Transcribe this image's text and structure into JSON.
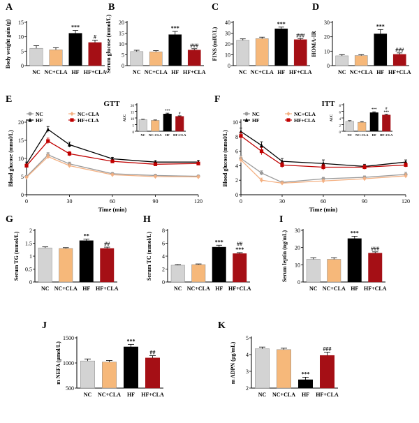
{
  "colors": {
    "NC": "#d3d3d3",
    "NC+CLA": "#f6b87a",
    "HF": "#000000",
    "HF+CLA": "#a50f15",
    "line_NC": "#9a9a9a",
    "line_NCCLA": "#f4b183",
    "line_HF": "#000000",
    "line_HFCLA": "#c00000"
  },
  "chart_data": [
    {
      "panel": "A",
      "type": "bar",
      "categories": [
        "NC",
        "NC+CLA",
        "HF",
        "HF+CLA"
      ],
      "values": [
        6.0,
        5.5,
        11.2,
        8.0
      ],
      "errors": [
        0.9,
        0.7,
        1.0,
        0.8
      ],
      "sig": [
        "",
        "",
        "***",
        "#"
      ],
      "ylabel": "Body weight gain (g)",
      "ylim": [
        0,
        15
      ],
      "yticks": [
        0,
        5,
        10,
        15
      ]
    },
    {
      "panel": "B",
      "type": "bar",
      "categories": [
        "NC",
        "NC+CLA",
        "HF",
        "HF+CLA"
      ],
      "values": [
        6.5,
        6.4,
        14.3,
        7.2
      ],
      "errors": [
        0.6,
        0.5,
        1.5,
        0.6
      ],
      "sig": [
        "",
        "",
        "***",
        "###"
      ],
      "ylabel": "Serum glucose (mmol/L)",
      "ylim": [
        0,
        20
      ],
      "yticks": [
        0,
        5,
        10,
        15,
        20
      ]
    },
    {
      "panel": "C",
      "type": "bar",
      "categories": [
        "NC",
        "NC+CLA",
        "HF",
        "HF+CLA"
      ],
      "values": [
        23.5,
        25.0,
        34.0,
        24.0
      ],
      "errors": [
        1.2,
        1.3,
        1.6,
        1.0
      ],
      "sig": [
        "",
        "",
        "***",
        "###"
      ],
      "ylabel": "FINS (mIU/L)",
      "ylim": [
        0,
        40
      ],
      "yticks": [
        0,
        10,
        20,
        30,
        40
      ]
    },
    {
      "panel": "D",
      "type": "bar",
      "categories": [
        "NC",
        "NC+CLA",
        "HF",
        "HF+CLA"
      ],
      "values": [
        6.8,
        7.0,
        22.0,
        7.8
      ],
      "errors": [
        0.8,
        0.6,
        3.0,
        1.0
      ],
      "sig": [
        "",
        "",
        "***",
        "###"
      ],
      "ylabel": "HOMA-IR",
      "ylim": [
        0,
        30
      ],
      "yticks": [
        0,
        10,
        20,
        30
      ]
    },
    {
      "panel": "E",
      "type": "line",
      "title": "GTT",
      "xlabel": "Time (min)",
      "ylabel": "Blood glucose (mmol/L)",
      "x": [
        0,
        15,
        30,
        60,
        90,
        120
      ],
      "xticks": [
        0,
        30,
        60,
        90,
        120
      ],
      "ylim": [
        0,
        20
      ],
      "yticks": [
        0,
        5,
        10,
        15,
        20
      ],
      "series": [
        {
          "name": "NC",
          "values": [
            5.0,
            11.0,
            8.5,
            5.8,
            5.3,
            5.1
          ],
          "errors": [
            0.3,
            0.6,
            0.5,
            0.3,
            0.3,
            0.3
          ]
        },
        {
          "name": "NC+CLA",
          "values": [
            4.8,
            10.5,
            8.0,
            5.5,
            5.0,
            4.9
          ],
          "errors": [
            0.3,
            0.6,
            0.5,
            0.3,
            0.3,
            0.3
          ]
        },
        {
          "name": "HF",
          "values": [
            8.5,
            18.0,
            13.8,
            9.9,
            9.0,
            9.0
          ],
          "errors": [
            0.5,
            0.8,
            0.7,
            0.4,
            0.4,
            0.5
          ]
        },
        {
          "name": "HF+CLA",
          "values": [
            8.0,
            14.8,
            11.3,
            9.2,
            8.4,
            8.6
          ],
          "errors": [
            0.5,
            0.8,
            0.6,
            0.4,
            0.4,
            0.4
          ]
        }
      ],
      "inset": {
        "ylabel": "AUC",
        "ylim": [
          0,
          2000
        ],
        "yticks": [
          0,
          500,
          1000,
          1500,
          2000
        ],
        "categories": [
          "NC",
          "NC+CLA",
          "HF",
          "HF+CLA"
        ],
        "values": [
          870,
          820,
          1300,
          1120
        ],
        "errors": [
          30,
          30,
          60,
          40
        ],
        "sig": [
          "",
          "",
          "***",
          "#"
        ]
      }
    },
    {
      "panel": "F",
      "type": "line",
      "title": "ITT",
      "xlabel": "Time (min)",
      "ylabel": "Blood glucose (mmol/L)",
      "x": [
        0,
        15,
        30,
        60,
        90,
        120
      ],
      "xticks": [
        0,
        30,
        60,
        90,
        120
      ],
      "ylim": [
        0,
        10
      ],
      "yticks": [
        0,
        2,
        4,
        6,
        8,
        10
      ],
      "series": [
        {
          "name": "NC",
          "values": [
            5.0,
            3.0,
            1.7,
            2.2,
            2.4,
            2.8
          ],
          "errors": [
            0.4,
            0.3,
            0.2,
            0.2,
            0.2,
            0.3
          ]
        },
        {
          "name": "NC+CLA",
          "values": [
            4.8,
            2.0,
            1.6,
            1.9,
            2.2,
            2.6
          ],
          "errors": [
            0.4,
            0.3,
            0.2,
            0.2,
            0.2,
            0.3
          ]
        },
        {
          "name": "HF",
          "values": [
            8.7,
            6.8,
            4.6,
            4.3,
            3.9,
            4.5
          ],
          "errors": [
            0.5,
            0.5,
            0.4,
            0.5,
            0.3,
            0.3
          ]
        },
        {
          "name": "HF+CLA",
          "values": [
            8.1,
            6.0,
            4.1,
            3.8,
            3.8,
            4.1
          ],
          "errors": [
            0.5,
            0.5,
            0.4,
            0.4,
            0.3,
            0.3
          ]
        }
      ],
      "inset": {
        "ylabel": "AUC",
        "ylim": [
          0,
          800
        ],
        "yticks": [
          0,
          200,
          400,
          600,
          800
        ],
        "categories": [
          "NC",
          "NC+CLA",
          "HF",
          "HF+CLA"
        ],
        "values": [
          300,
          270,
          560,
          490
        ],
        "errors": [
          20,
          20,
          25,
          20
        ],
        "sig": [
          "",
          "",
          "***",
          "#\n***"
        ]
      }
    },
    {
      "panel": "G",
      "type": "bar",
      "categories": [
        "NC",
        "NC+CLA",
        "HF",
        "HF+CLA"
      ],
      "values": [
        1.32,
        1.3,
        1.6,
        1.3
      ],
      "errors": [
        0.04,
        0.03,
        0.06,
        0.05
      ],
      "sig": [
        "",
        "",
        "**",
        "##"
      ],
      "ylabel": "Serum TG (mmol/L)",
      "ylim": [
        0,
        2.0
      ],
      "yticks": [
        0.0,
        0.5,
        1.0,
        1.5,
        2.0
      ]
    },
    {
      "panel": "H",
      "type": "bar",
      "categories": [
        "NC",
        "NC+CLA",
        "HF",
        "HF+CLA"
      ],
      "values": [
        2.6,
        2.7,
        5.4,
        4.4
      ],
      "errors": [
        0.1,
        0.1,
        0.3,
        0.15
      ],
      "sig": [
        "",
        "",
        "***",
        "##\n***"
      ],
      "ylabel": "Serum TC (mmol/L)",
      "ylim": [
        0,
        8
      ],
      "yticks": [
        0,
        2,
        4,
        6,
        8
      ]
    },
    {
      "panel": "I",
      "type": "bar",
      "categories": [
        "NC",
        "NC+CLA",
        "HF",
        "HF+CLA"
      ],
      "values": [
        13.2,
        13.2,
        25.2,
        16.8
      ],
      "errors": [
        0.9,
        0.9,
        1.4,
        0.7
      ],
      "sig": [
        "",
        "",
        "***",
        "###"
      ],
      "ylabel": "Serum leptin (ng/mL)",
      "ylim": [
        0,
        30
      ],
      "yticks": [
        0,
        10,
        20,
        30
      ]
    },
    {
      "panel": "J",
      "type": "bar",
      "categories": [
        "NC",
        "NC+CLA",
        "HF",
        "HF+CLA"
      ],
      "values": [
        1040,
        1020,
        1320,
        1100
      ],
      "errors": [
        40,
        30,
        50,
        45
      ],
      "sig": [
        "",
        "",
        "***",
        "##"
      ],
      "ylabel": "m NEFA (μmol/L)",
      "ylim": [
        500,
        1500
      ],
      "yticks": [
        500,
        1000,
        1500
      ]
    },
    {
      "panel": "K",
      "type": "bar",
      "categories": [
        "NC",
        "NC+CLA",
        "HF",
        "HF+CLA"
      ],
      "values": [
        4.35,
        4.3,
        2.5,
        3.95
      ],
      "errors": [
        0.1,
        0.08,
        0.15,
        0.2
      ],
      "sig": [
        "",
        "",
        "***",
        "###"
      ],
      "ylabel": "m ADPN (μg/mL)",
      "ylim": [
        2,
        5
      ],
      "yticks": [
        2,
        3,
        4,
        5
      ]
    }
  ]
}
